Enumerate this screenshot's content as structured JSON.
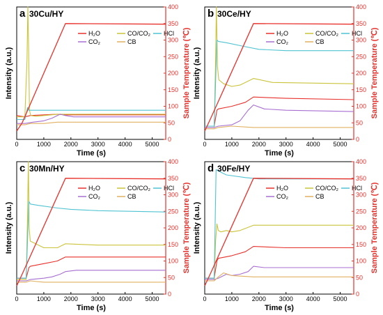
{
  "colors": {
    "H2O": "#e8302b",
    "COCO2": "#c9c43a",
    "HCl": "#4fc3d1",
    "CO2": "#a66fd1",
    "CB": "#e0b060",
    "right_axis": "#e8302b",
    "frame": "#000000"
  },
  "legend_labels": {
    "H2O": "H₂O",
    "COCO2": "CO/CO₂",
    "HCl": "HCl",
    "CO2": "CO₂",
    "CB": "CB"
  },
  "chart_data": [
    {
      "type": "line",
      "letter": "a",
      "title": "30Cu/HY",
      "xlabel": "Time (s)",
      "ylabel": "Intensity (a.u.)",
      "ylabel_right": "Sample Temperature (℃)",
      "xlim": [
        0,
        5500
      ],
      "ylim_right": [
        0,
        400
      ],
      "x_ticks": [
        0,
        1000,
        2000,
        3000,
        4000,
        5000
      ],
      "right_ticks": [
        0,
        50,
        100,
        150,
        200,
        250,
        300,
        350,
        400
      ],
      "series": [
        {
          "key": "H2O",
          "axis": "left",
          "x": [
            0,
            300,
            500,
            1000,
            1500,
            1800,
            3000,
            5500
          ],
          "y": [
            0.18,
            0.17,
            0.18,
            0.185,
            0.19,
            0.185,
            0.185,
            0.185
          ]
        },
        {
          "key": "COCO2",
          "axis": "left",
          "x": [
            0,
            300,
            380,
            410,
            440,
            470,
            520,
            700,
            1000,
            1500,
            1800,
            3000,
            5500
          ],
          "y": [
            0.17,
            0.17,
            0.6,
            1.0,
            0.7,
            0.22,
            0.18,
            0.175,
            0.18,
            0.19,
            0.19,
            0.19,
            0.19
          ]
        },
        {
          "key": "HCl",
          "axis": "left",
          "x": [
            0,
            300,
            400,
            450,
            500,
            1000,
            5500
          ],
          "y": [
            0.15,
            0.15,
            0.24,
            0.22,
            0.22,
            0.22,
            0.22
          ]
        },
        {
          "key": "CO2",
          "axis": "left",
          "x": [
            0,
            300,
            600,
            1000,
            1300,
            1600,
            1800,
            2100,
            3000,
            5500
          ],
          "y": [
            0.12,
            0.12,
            0.13,
            0.14,
            0.16,
            0.19,
            0.18,
            0.17,
            0.17,
            0.17
          ]
        },
        {
          "key": "CB",
          "axis": "left",
          "x": [
            0,
            300,
            500,
            1000,
            1500,
            1800,
            3000,
            5500
          ],
          "y": [
            0.11,
            0.11,
            0.12,
            0.12,
            0.13,
            0.13,
            0.13,
            0.13
          ]
        },
        {
          "key": "T",
          "axis": "right",
          "x": [
            0,
            200,
            1800,
            5500
          ],
          "y": [
            25,
            50,
            350,
            348
          ]
        }
      ]
    },
    {
      "type": "line",
      "letter": "b",
      "title": "30Ce/HY",
      "xlabel": "Time (s)",
      "ylabel": "Intensity (a.u.)",
      "ylabel_right": "Sample Temperature (℃)",
      "xlim": [
        0,
        5500
      ],
      "ylim_right": [
        0,
        400
      ],
      "x_ticks": [
        0,
        1000,
        2000,
        3000,
        4000,
        5000
      ],
      "right_ticks": [
        0,
        50,
        100,
        150,
        200,
        250,
        300,
        350,
        400
      ],
      "series": [
        {
          "key": "H2O",
          "axis": "left",
          "x": [
            0,
            350,
            450,
            500,
            1000,
            1500,
            1800,
            3000,
            5500
          ],
          "y": [
            0.1,
            0.1,
            0.22,
            0.23,
            0.25,
            0.28,
            0.32,
            0.31,
            0.3
          ]
        },
        {
          "key": "COCO2",
          "axis": "left",
          "x": [
            0,
            350,
            400,
            430,
            470,
            520,
            700,
            1000,
            1300,
            1800,
            2500,
            5500
          ],
          "y": [
            0.09,
            0.09,
            0.6,
            1.0,
            0.55,
            0.45,
            0.42,
            0.4,
            0.41,
            0.46,
            0.43,
            0.42
          ]
        },
        {
          "key": "HCl",
          "axis": "left",
          "x": [
            0,
            350,
            450,
            500,
            800,
            1500,
            2000,
            3000,
            5500
          ],
          "y": [
            0.1,
            0.1,
            0.75,
            0.74,
            0.73,
            0.7,
            0.68,
            0.67,
            0.67
          ]
        },
        {
          "key": "CO2",
          "axis": "left",
          "x": [
            0,
            350,
            500,
            1000,
            1300,
            1600,
            1800,
            2200,
            3000,
            5500
          ],
          "y": [
            0.09,
            0.09,
            0.1,
            0.11,
            0.14,
            0.22,
            0.26,
            0.23,
            0.22,
            0.21
          ]
        },
        {
          "key": "CB",
          "axis": "left",
          "x": [
            0,
            350,
            500,
            1000,
            1800,
            5500
          ],
          "y": [
            0.08,
            0.08,
            0.09,
            0.1,
            0.09,
            0.09
          ]
        },
        {
          "key": "T",
          "axis": "right",
          "x": [
            0,
            200,
            1800,
            5500
          ],
          "y": [
            25,
            60,
            350,
            348
          ]
        }
      ]
    },
    {
      "type": "line",
      "letter": "c",
      "title": "30Mn/HY",
      "xlabel": "Time (s)",
      "ylabel": "Intensity (a.u.)",
      "ylabel_right": "Sample Temperature (℃)",
      "xlim": [
        0,
        5500
      ],
      "ylim_right": [
        0,
        400
      ],
      "x_ticks": [
        0,
        1000,
        2000,
        3000,
        4000,
        5000
      ],
      "right_ticks": [
        0,
        50,
        100,
        150,
        200,
        250,
        300,
        350,
        400
      ],
      "series": [
        {
          "key": "H2O",
          "axis": "left",
          "x": [
            0,
            350,
            450,
            500,
            1000,
            1500,
            1800,
            3000,
            5500
          ],
          "y": [
            0.12,
            0.12,
            0.2,
            0.21,
            0.23,
            0.25,
            0.28,
            0.28,
            0.28
          ]
        },
        {
          "key": "COCO2",
          "axis": "left",
          "x": [
            0,
            350,
            400,
            430,
            460,
            500,
            700,
            1000,
            1500,
            1800,
            3000,
            5500
          ],
          "y": [
            0.11,
            0.11,
            0.6,
            1.0,
            0.5,
            0.4,
            0.38,
            0.35,
            0.35,
            0.38,
            0.37,
            0.37
          ]
        },
        {
          "key": "HCl",
          "axis": "left",
          "x": [
            0,
            350,
            450,
            500,
            800,
            1500,
            2000,
            3000,
            5500
          ],
          "y": [
            0.12,
            0.12,
            0.7,
            0.68,
            0.67,
            0.65,
            0.64,
            0.63,
            0.62
          ]
        },
        {
          "key": "CO2",
          "axis": "left",
          "x": [
            0,
            350,
            500,
            1000,
            1300,
            1600,
            1800,
            2200,
            3000,
            5500
          ],
          "y": [
            0.1,
            0.1,
            0.11,
            0.12,
            0.13,
            0.15,
            0.17,
            0.18,
            0.18,
            0.18
          ]
        },
        {
          "key": "CB",
          "axis": "left",
          "x": [
            0,
            350,
            500,
            1000,
            1800,
            5500
          ],
          "y": [
            0.09,
            0.09,
            0.1,
            0.09,
            0.09,
            0.09
          ]
        },
        {
          "key": "T",
          "axis": "right",
          "x": [
            0,
            200,
            1800,
            5500
          ],
          "y": [
            25,
            60,
            350,
            348
          ]
        }
      ]
    },
    {
      "type": "line",
      "letter": "d",
      "title": "30Fe/HY",
      "xlabel": "Time (s)",
      "ylabel": "Intensity (a.u.)",
      "ylabel_right": "Sample Temperature (℃)",
      "xlim": [
        0,
        5500
      ],
      "ylim_right": [
        0,
        400
      ],
      "x_ticks": [
        0,
        1000,
        2000,
        3000,
        4000,
        5000
      ],
      "right_ticks": [
        0,
        50,
        100,
        150,
        200,
        250,
        300,
        350,
        400
      ],
      "series": [
        {
          "key": "H2O",
          "axis": "left",
          "x": [
            0,
            350,
            450,
            500,
            1000,
            1500,
            1800,
            3000,
            5500
          ],
          "y": [
            0.12,
            0.12,
            0.25,
            0.27,
            0.29,
            0.32,
            0.36,
            0.35,
            0.35
          ]
        },
        {
          "key": "COCO2",
          "axis": "left",
          "x": [
            0,
            350,
            400,
            450,
            500,
            600,
            800,
            1000,
            1300,
            1800,
            3000,
            5500
          ],
          "y": [
            0.11,
            0.11,
            0.4,
            0.53,
            0.48,
            0.47,
            0.48,
            0.47,
            0.48,
            0.52,
            0.52,
            0.52
          ]
        },
        {
          "key": "HCl",
          "axis": "left",
          "x": [
            0,
            350,
            420,
            500,
            800,
            1500,
            2000,
            3000,
            5500
          ],
          "y": [
            0.12,
            0.12,
            0.94,
            0.93,
            0.9,
            0.88,
            0.87,
            0.87,
            0.87
          ]
        },
        {
          "key": "CO2",
          "axis": "left",
          "x": [
            0,
            350,
            500,
            800,
            1000,
            1300,
            1600,
            1800,
            2200,
            3000,
            5500
          ],
          "y": [
            0.11,
            0.11,
            0.12,
            0.15,
            0.14,
            0.15,
            0.17,
            0.21,
            0.2,
            0.2,
            0.2
          ]
        },
        {
          "key": "CB",
          "axis": "left",
          "x": [
            0,
            350,
            500,
            700,
            1000,
            1800,
            5500
          ],
          "y": [
            0.1,
            0.1,
            0.13,
            0.16,
            0.14,
            0.13,
            0.13
          ]
        },
        {
          "key": "T",
          "axis": "right",
          "x": [
            0,
            200,
            1800,
            5500
          ],
          "y": [
            25,
            60,
            350,
            348
          ]
        }
      ]
    }
  ]
}
